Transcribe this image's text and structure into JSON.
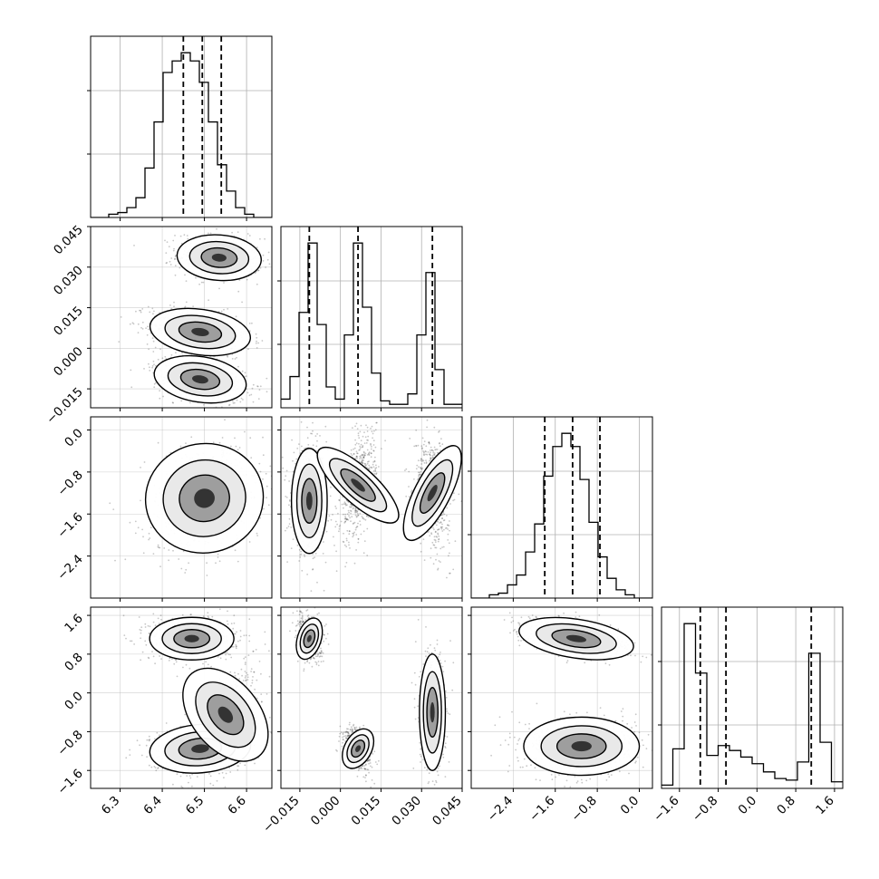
{
  "chart_data": {
    "type": "corner",
    "parameters": 4,
    "colors": {
      "background": "#ffffff",
      "frame": "#000000",
      "grid": "#b0b0b0",
      "histogram": "#000000",
      "quantile_line": "#000000",
      "scatter": "#000000",
      "contour": "#000000"
    },
    "grid": true,
    "quantiles": [
      0.16,
      0.5,
      0.84
    ],
    "axes": [
      {
        "lim": [
          6.23,
          6.66
        ],
        "ticks": [
          6.3,
          6.4,
          6.5,
          6.6
        ],
        "tick_labels": [
          "6.3",
          "6.4",
          "6.5",
          "6.6"
        ]
      },
      {
        "lim": [
          -0.022,
          0.045
        ],
        "ticks": [
          -0.015,
          0.0,
          0.015,
          0.03,
          0.045
        ],
        "tick_labels": [
          "−0.015",
          "0.000",
          "0.015",
          "0.030",
          "0.045"
        ]
      },
      {
        "lim": [
          -3.2,
          0.25
        ],
        "ticks": [
          -2.4,
          -1.6,
          -0.8,
          0.0
        ],
        "tick_labels": [
          "−2.4",
          "−1.6",
          "−0.8",
          "0.0"
        ]
      },
      {
        "lim": [
          -1.97,
          1.77
        ],
        "ticks": [
          -1.6,
          -0.8,
          0.0,
          0.8,
          1.6
        ],
        "tick_labels": [
          "−1.6",
          "−0.8",
          "0.0",
          "0.8",
          "1.6"
        ]
      }
    ],
    "histograms": [
      {
        "param": 0,
        "quantile_values": [
          6.45,
          6.495,
          6.54
        ],
        "bins": [
          6.23,
          6.66
        ],
        "counts": [
          0,
          0,
          0.02,
          0.03,
          0.06,
          0.12,
          0.3,
          0.58,
          0.88,
          0.95,
          1.0,
          0.95,
          0.82,
          0.58,
          0.32,
          0.16,
          0.06,
          0.02,
          0,
          0
        ]
      },
      {
        "param": 1,
        "quantile_values": [
          -0.0115,
          0.0065,
          0.034
        ],
        "bins": [
          -0.022,
          0.045
        ],
        "counts": [
          0.05,
          0.18,
          0.55,
          0.95,
          0.48,
          0.12,
          0.05,
          0.42,
          0.95,
          0.58,
          0.2,
          0.04,
          0.02,
          0.02,
          0.08,
          0.42,
          0.78,
          0.22,
          0.02,
          0.02
        ]
      },
      {
        "param": 2,
        "quantile_values": [
          -1.8,
          -1.27,
          -0.75
        ],
        "bins": [
          -3.2,
          0.25
        ],
        "counts": [
          0,
          0,
          0.02,
          0.03,
          0.08,
          0.14,
          0.28,
          0.45,
          0.74,
          0.92,
          1.0,
          0.92,
          0.72,
          0.46,
          0.25,
          0.12,
          0.05,
          0.02,
          0,
          0
        ]
      },
      {
        "param": 3,
        "quantile_values": [
          -1.17,
          -0.64,
          1.12
        ],
        "bins": [
          -1.97,
          1.77
        ],
        "counts": [
          0.02,
          0.24,
          1.0,
          0.7,
          0.2,
          0.26,
          0.23,
          0.19,
          0.15,
          0.1,
          0.06,
          0.05,
          0.16,
          0.82,
          0.28,
          0.04
        ]
      }
    ],
    "pairs": [
      {
        "x": 0,
        "y": 1,
        "modes": [
          {
            "cx": 6.535,
            "cy": 0.0335,
            "sx": 0.05,
            "sy": 0.0042,
            "rho": -0.15
          },
          {
            "cx": 6.49,
            "cy": 0.006,
            "sx": 0.06,
            "sy": 0.0042,
            "rho": -0.35
          },
          {
            "cx": 6.49,
            "cy": -0.0115,
            "sx": 0.055,
            "sy": 0.0042,
            "rho": -0.35
          }
        ]
      },
      {
        "x": 0,
        "y": 2,
        "modes": [
          {
            "cx": 6.5,
            "cy": -1.3,
            "sx": 0.07,
            "sy": 0.52,
            "rho": 0.2
          }
        ]
      },
      {
        "x": 1,
        "y": 2,
        "modes": [
          {
            "cx": -0.0115,
            "cy": -1.35,
            "sx": 0.0033,
            "sy": 0.5,
            "rho": 0.0
          },
          {
            "cx": 0.0065,
            "cy": -1.05,
            "sx": 0.0033,
            "sy": 0.5,
            "rho": 0.45
          },
          {
            "cx": 0.034,
            "cy": -1.2,
            "sx": 0.0033,
            "sy": 0.5,
            "rho": -0.2
          }
        ]
      },
      {
        "x": 0,
        "y": 3,
        "modes": [
          {
            "cx": 6.47,
            "cy": 1.12,
            "sx": 0.05,
            "sy": 0.22,
            "rho": 0.0
          },
          {
            "cx": 6.49,
            "cy": -1.15,
            "sx": 0.06,
            "sy": 0.25,
            "rho": 0.2
          },
          {
            "cx": 6.55,
            "cy": -0.45,
            "sx": 0.04,
            "sy": 0.55,
            "rho": 0.6
          }
        ]
      },
      {
        "x": 1,
        "y": 3,
        "modes": [
          {
            "cx": -0.0115,
            "cy": 1.12,
            "sx": 0.0022,
            "sy": 0.22,
            "rho": -0.2
          },
          {
            "cx": 0.0065,
            "cy": -1.15,
            "sx": 0.0025,
            "sy": 0.22,
            "rho": -0.4
          },
          {
            "cx": 0.034,
            "cy": -0.4,
            "sx": 0.0024,
            "sy": 0.6,
            "rho": 0.0
          }
        ]
      },
      {
        "x": 2,
        "y": 3,
        "modes": [
          {
            "cx": -1.2,
            "cy": 1.12,
            "sx": 0.55,
            "sy": 0.2,
            "rho": -0.5
          },
          {
            "cx": -1.1,
            "cy": -1.1,
            "sx": 0.55,
            "sy": 0.3,
            "rho": 0.0
          }
        ]
      }
    ]
  }
}
